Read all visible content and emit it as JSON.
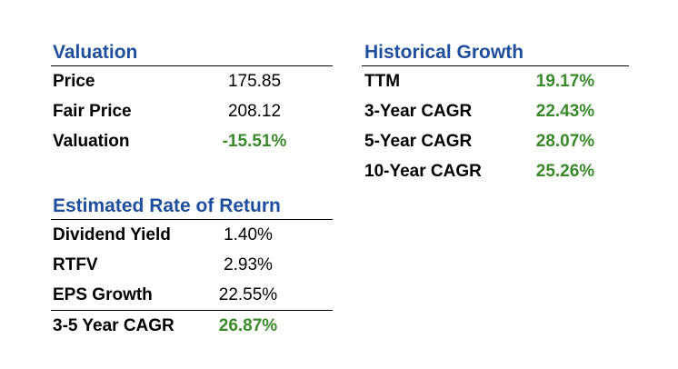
{
  "valuation": {
    "title": "Valuation",
    "rows": [
      {
        "label": "Price",
        "value": "175.85"
      },
      {
        "label": "Fair Price",
        "value": "208.12"
      },
      {
        "label": "Valuation",
        "value": "-15.51%"
      }
    ]
  },
  "rate_of_return": {
    "title": "Estimated Rate of Return",
    "rows": [
      {
        "label": "Dividend Yield",
        "value": "1.40%"
      },
      {
        "label": "RTFV",
        "value": "2.93%"
      },
      {
        "label": "EPS Growth",
        "value": "22.55%"
      }
    ],
    "total": {
      "label": "3-5 Year CAGR",
      "value": "26.87%"
    }
  },
  "historical_growth": {
    "title": "Historical Growth",
    "rows": [
      {
        "label": "TTM",
        "value": "19.17%"
      },
      {
        "label": "3-Year CAGR",
        "value": "22.43%"
      },
      {
        "label": "5-Year CAGR",
        "value": "28.07%"
      },
      {
        "label": "10-Year CAGR",
        "value": "25.26%"
      }
    ]
  },
  "colors": {
    "title": "#1f4e9c",
    "highlight_value": "#3a8a2a",
    "rule": "#000000"
  }
}
